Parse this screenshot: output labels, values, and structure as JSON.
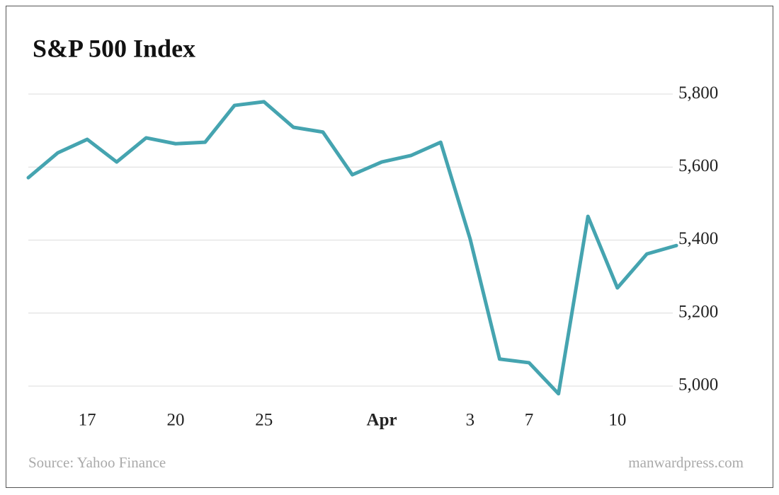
{
  "chart_data": {
    "type": "line",
    "title": "S&P 500 Index",
    "source": "Source: Yahoo Finance",
    "credit": "manwardpress.com",
    "categories": [
      null,
      null,
      "17",
      null,
      null,
      "20",
      null,
      null,
      "25",
      null,
      null,
      null,
      "Apr",
      null,
      null,
      "3",
      null,
      "7",
      null,
      null,
      "10",
      null,
      null
    ],
    "series": [
      {
        "name": "S&P 500",
        "color": "#45a4b0",
        "values": [
          5571,
          5639,
          5676,
          5614,
          5680,
          5664,
          5668,
          5769,
          5779,
          5709,
          5696,
          5579,
          5614,
          5632,
          5668,
          5403,
          5074,
          5064,
          4979,
          5465,
          5269,
          5362,
          5385
        ]
      }
    ],
    "ylim": [
      4960,
      5840
    ],
    "yticks": [
      {
        "value": 5000,
        "label": "5,000"
      },
      {
        "value": 5200,
        "label": "5,200"
      },
      {
        "value": 5400,
        "label": "5,400"
      },
      {
        "value": 5600,
        "label": "5,600"
      },
      {
        "value": 5800,
        "label": "5,800"
      }
    ],
    "grid": true
  }
}
